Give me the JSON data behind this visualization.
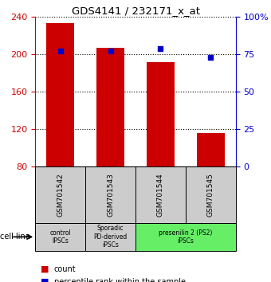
{
  "title": "GDS4141 / 232171_x_at",
  "samples": [
    "GSM701542",
    "GSM701543",
    "GSM701544",
    "GSM701545"
  ],
  "counts": [
    233,
    207,
    192,
    116
  ],
  "percentile_ranks": [
    77,
    77,
    79,
    73
  ],
  "ylim_left": [
    80,
    240
  ],
  "ylim_right": [
    0,
    100
  ],
  "yticks_left": [
    80,
    120,
    160,
    200,
    240
  ],
  "yticks_right": [
    0,
    25,
    50,
    75,
    100
  ],
  "yticklabels_right": [
    "0",
    "25",
    "50",
    "75",
    "100%"
  ],
  "bar_color": "#cc0000",
  "dot_color": "#0000cc",
  "bar_width": 0.55,
  "group_defs": [
    {
      "indices": [
        0
      ],
      "label": "control\nIPSCs",
      "color": "#cccccc"
    },
    {
      "indices": [
        1
      ],
      "label": "Sporadic\nPD-derived\niPSCs",
      "color": "#cccccc"
    },
    {
      "indices": [
        2,
        3
      ],
      "label": "presenilin 2 (PS2)\niPSCs",
      "color": "#66ee66"
    }
  ],
  "sample_box_color": "#cccccc",
  "cell_line_label": "cell line",
  "legend_count_label": "count",
  "legend_pct_label": "percentile rank within the sample",
  "left_tick_color": "#cc0000",
  "right_tick_color": "#0000cc"
}
